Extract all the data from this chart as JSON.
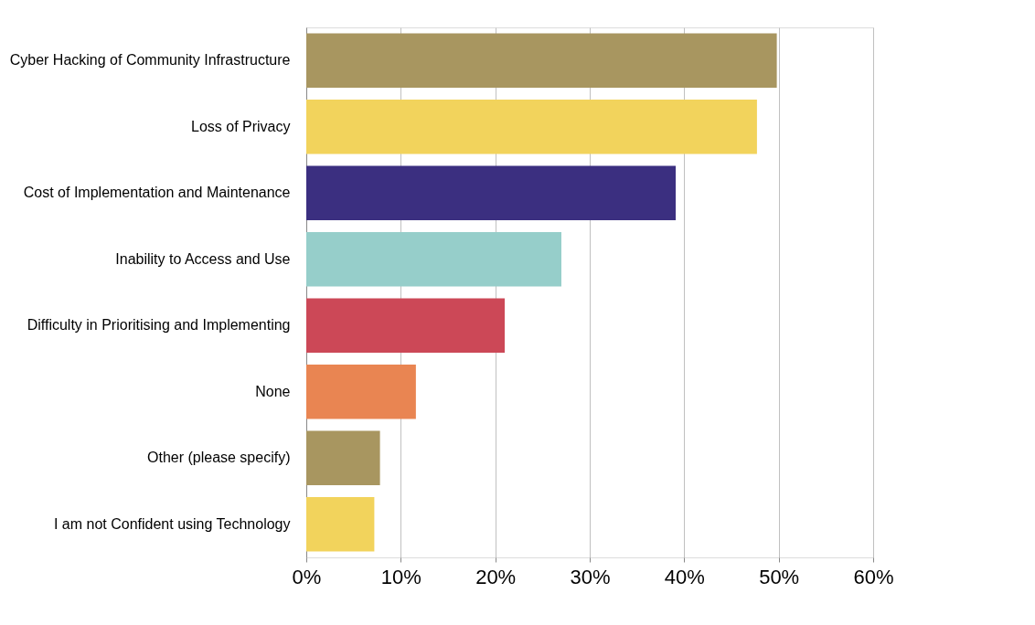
{
  "chart_data": {
    "type": "bar",
    "orientation": "horizontal",
    "categories": [
      "Cyber Hacking of Community Infrastructure",
      "Loss of Privacy",
      "Cost of Implementation and Maintenance",
      "Inability to Access and Use",
      "Difficulty in Prioritising and Implementing",
      "None",
      "Other (please specify)",
      "I am not Confident using Technology"
    ],
    "values": [
      49.8,
      47.7,
      39.1,
      27.0,
      21.0,
      11.6,
      7.8,
      7.2
    ],
    "colors": [
      "#a89660",
      "#f2d35c",
      "#3b2f80",
      "#96ceca",
      "#cc4857",
      "#e98552",
      "#a89660",
      "#f2d35c"
    ],
    "xlim": [
      0,
      60
    ],
    "xticks": [
      {
        "value": 0,
        "label": "0%"
      },
      {
        "value": 10,
        "label": "10%"
      },
      {
        "value": 20,
        "label": "20%"
      },
      {
        "value": 30,
        "label": "30%"
      },
      {
        "value": 40,
        "label": "40%"
      },
      {
        "value": 50,
        "label": "50%"
      },
      {
        "value": 60,
        "label": "60%"
      }
    ],
    "grid": "x"
  }
}
